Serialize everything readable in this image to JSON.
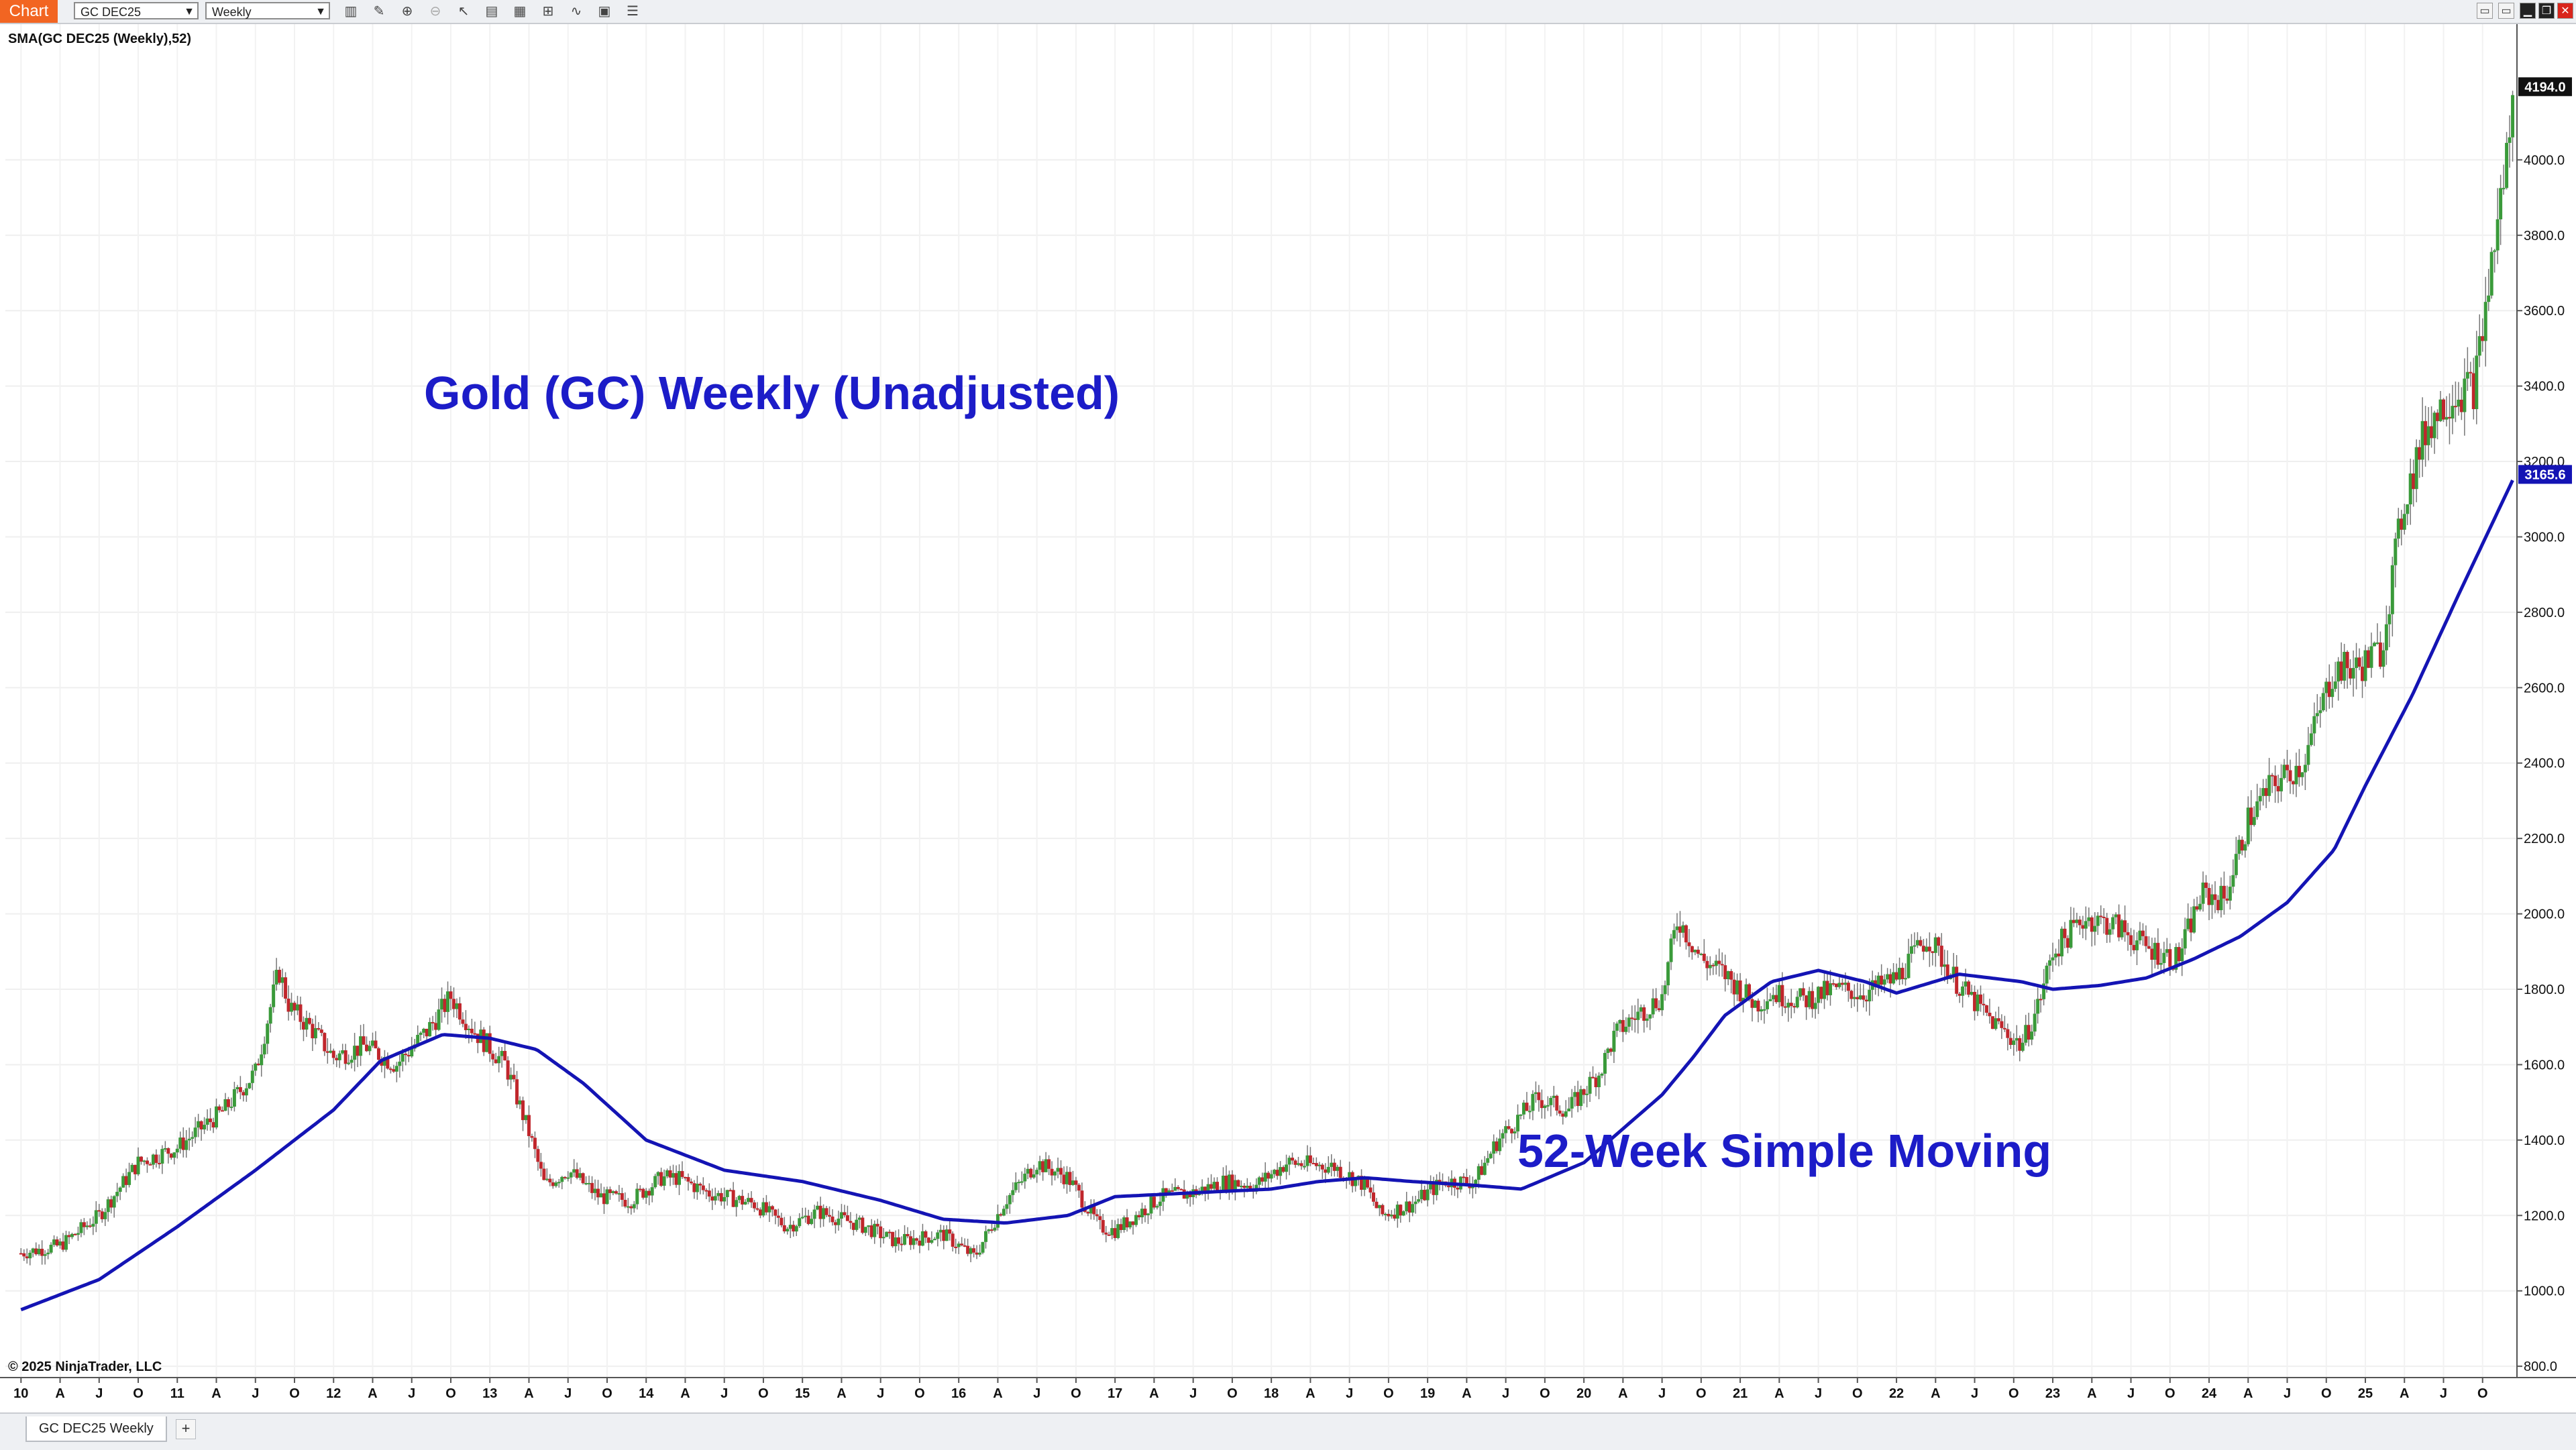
{
  "toolbar": {
    "tab_label": "Chart",
    "instrument": "GC DEC25",
    "period": "Weekly",
    "icons": [
      "bar-chart-icon",
      "pencil-icon",
      "zoom-in-icon",
      "zoom-out-icon",
      "cursor-icon",
      "data-box-icon",
      "template-icon",
      "layout-icon",
      "indicator-icon",
      "strategy-icon",
      "properties-icon"
    ],
    "window_buttons": [
      "minimize-icon",
      "restore-icon",
      "maximize-icon",
      "close-icon"
    ]
  },
  "bottom": {
    "tab_label": "GC DEC25 Weekly",
    "add_label": "+"
  },
  "chart_data": {
    "type": "line",
    "indicator_label": "SMA(GC DEC25 (Weekly),52)",
    "title": "Gold (GC) Weekly (Unadjusted)",
    "annotation": "52-Week Simple Moving",
    "copyright": "© 2025 NinjaTrader, LLC",
    "last_price_label": "4194.0",
    "sma_value_label": "3165.6",
    "ylim": [
      770,
      4360
    ],
    "y_ticks": [
      "800.0",
      "1000.0",
      "1200.0",
      "1400.0",
      "1600.0",
      "1800.0",
      "2000.0",
      "2200.0",
      "2400.0",
      "2600.0",
      "2800.0",
      "3000.0",
      "3200.0",
      "3400.0",
      "3600.0",
      "3800.0",
      "4000.0"
    ],
    "x_range": [
      2009.9,
      2025.97
    ],
    "x_ticks": [
      "10",
      "A",
      "J",
      "O",
      "11",
      "A",
      "J",
      "O",
      "12",
      "A",
      "J",
      "O",
      "13",
      "A",
      "J",
      "O",
      "14",
      "A",
      "J",
      "O",
      "15",
      "A",
      "J",
      "O",
      "16",
      "A",
      "J",
      "O",
      "17",
      "A",
      "J",
      "O",
      "18",
      "A",
      "J",
      "O",
      "19",
      "A",
      "J",
      "O",
      "20",
      "A",
      "J",
      "O",
      "21",
      "A",
      "J",
      "O",
      "22",
      "A",
      "J",
      "O",
      "23",
      "A",
      "J",
      "O",
      "24",
      "A",
      "J",
      "O",
      "25",
      "A",
      "J",
      "O"
    ],
    "colors": {
      "up": "#3a9a3a",
      "down": "#c0262c",
      "sma": "#1414b4",
      "text_blue": "#1c1cc8",
      "grid": "#eeeeee"
    },
    "series": [
      {
        "name": "Price",
        "style": "candlestick",
        "x": [
          2010.0,
          2010.25,
          2010.5,
          2010.75,
          2011.0,
          2011.3,
          2011.5,
          2011.65,
          2011.72,
          2011.85,
          2012.0,
          2012.2,
          2012.4,
          2012.6,
          2012.75,
          2012.9,
          2013.1,
          2013.25,
          2013.35,
          2013.5,
          2013.7,
          2013.9,
          2014.1,
          2014.2,
          2014.4,
          2014.7,
          2014.9,
          2015.1,
          2015.4,
          2015.6,
          2015.9,
          2016.1,
          2016.3,
          2016.5,
          2016.7,
          2016.9,
          2017.0,
          2017.3,
          2017.5,
          2017.7,
          2017.9,
          2018.1,
          2018.4,
          2018.6,
          2018.7,
          2018.9,
          2019.1,
          2019.3,
          2019.45,
          2019.7,
          2019.9,
          2020.1,
          2020.2,
          2020.3,
          2020.5,
          2020.6,
          2020.75,
          2020.9,
          2021.1,
          2021.2,
          2021.4,
          2021.6,
          2021.8,
          2022.0,
          2022.2,
          2022.4,
          2022.6,
          2022.8,
          2022.9,
          2023.0,
          2023.2,
          2023.4,
          2023.6,
          2023.8,
          2023.95,
          2024.1,
          2024.25,
          2024.4,
          2024.6,
          2024.8,
          2024.95,
          2025.1,
          2025.25,
          2025.4,
          2025.55,
          2025.7,
          2025.8,
          2025.9,
          2025.96
        ],
        "y": [
          1100,
          1120,
          1200,
          1340,
          1380,
          1480,
          1580,
          1850,
          1750,
          1700,
          1620,
          1650,
          1600,
          1690,
          1780,
          1690,
          1600,
          1420,
          1280,
          1320,
          1250,
          1240,
          1300,
          1300,
          1260,
          1230,
          1170,
          1210,
          1170,
          1130,
          1150,
          1090,
          1240,
          1340,
          1300,
          1170,
          1160,
          1250,
          1260,
          1290,
          1280,
          1340,
          1330,
          1280,
          1200,
          1230,
          1290,
          1290,
          1400,
          1510,
          1480,
          1580,
          1680,
          1720,
          1780,
          1990,
          1880,
          1840,
          1760,
          1790,
          1770,
          1800,
          1790,
          1830,
          1940,
          1810,
          1720,
          1650,
          1750,
          1900,
          1990,
          1970,
          1910,
          1880,
          2050,
          2040,
          2250,
          2340,
          2400,
          2650,
          2650,
          2700,
          3100,
          3300,
          3380,
          3400,
          3700,
          4000,
          4194
        ]
      },
      {
        "name": "SMA(GC DEC25 (Weekly),52)",
        "style": "line",
        "x": [
          2010.0,
          2010.5,
          2011.0,
          2011.5,
          2012.0,
          2012.3,
          2012.7,
          2013.0,
          2013.3,
          2013.6,
          2014.0,
          2014.5,
          2015.0,
          2015.5,
          2015.9,
          2016.3,
          2016.7,
          2017.0,
          2017.5,
          2018.0,
          2018.3,
          2018.6,
          2018.9,
          2019.1,
          2019.3,
          2019.6,
          2020.0,
          2020.5,
          2020.7,
          2020.9,
          2021.2,
          2021.5,
          2021.8,
          2022.0,
          2022.4,
          2022.8,
          2023.0,
          2023.3,
          2023.6,
          2023.9,
          2024.2,
          2024.5,
          2024.8,
          2025.0,
          2025.3,
          2025.6,
          2025.96
        ],
        "y": [
          950,
          1030,
          1170,
          1320,
          1480,
          1610,
          1680,
          1670,
          1640,
          1550,
          1400,
          1320,
          1290,
          1240,
          1190,
          1180,
          1200,
          1250,
          1260,
          1270,
          1290,
          1300,
          1290,
          1285,
          1280,
          1270,
          1340,
          1520,
          1620,
          1730,
          1820,
          1850,
          1820,
          1790,
          1840,
          1820,
          1800,
          1810,
          1830,
          1880,
          1940,
          2030,
          2170,
          2340,
          2580,
          2850,
          3165.6
        ]
      }
    ]
  }
}
